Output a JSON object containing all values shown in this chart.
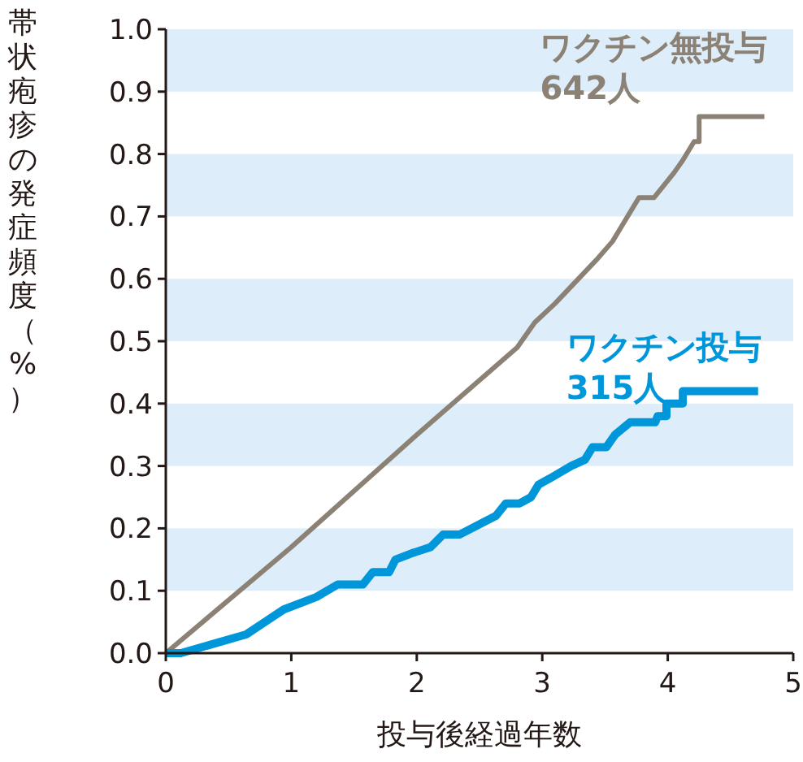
{
  "chart_data": {
    "type": "line",
    "xlabel": "投与後経過年数",
    "ylabel": "帯状疱疹の発症頻度（%）",
    "xlim": [
      0,
      5
    ],
    "xticks": [
      0,
      1,
      2,
      3,
      4,
      5
    ],
    "ylim": [
      0,
      1
    ],
    "yticks": [
      {
        "value": 0,
        "label": "0.0"
      },
      {
        "value": 0.1,
        "label": "0.1"
      },
      {
        "value": 0.2,
        "label": "0.2"
      },
      {
        "value": 0.3,
        "label": "0.3"
      },
      {
        "value": 0.4,
        "label": "0.4"
      },
      {
        "value": 0.5,
        "label": "0.5"
      },
      {
        "value": 0.6,
        "label": "0.6"
      },
      {
        "value": 0.7,
        "label": "0.7"
      },
      {
        "value": 0.8,
        "label": "0.8"
      },
      {
        "value": 0.9,
        "label": "0.9"
      },
      {
        "value": 1,
        "label": "1.0"
      }
    ],
    "bands": [
      {
        "axis": "y",
        "from": 0.1,
        "to": 0.2,
        "color": "#ddedf9"
      },
      {
        "axis": "y",
        "from": 0.3,
        "to": 0.4,
        "color": "#ddedf9"
      },
      {
        "axis": "y",
        "from": 0.5,
        "to": 0.6,
        "color": "#ddedf9"
      },
      {
        "axis": "y",
        "from": 0.7,
        "to": 0.8,
        "color": "#ddedf9"
      },
      {
        "axis": "y",
        "from": 0.9,
        "to": 1.0,
        "color": "#ddedf9"
      }
    ],
    "series": [
      {
        "name": "ワクチン無投与\n642人",
        "color": "#8c8175",
        "x": [
          0,
          1,
          2,
          2.8,
          2.94,
          3.1,
          3.43,
          3.56,
          3.77,
          3.89,
          4.05,
          4.12,
          4.21,
          4.25,
          4.25,
          4.77
        ],
        "values": [
          0,
          0.17,
          0.35,
          0.49,
          0.53,
          0.56,
          0.63,
          0.66,
          0.73,
          0.73,
          0.77,
          0.79,
          0.82,
          0.82,
          0.86,
          0.86
        ]
      },
      {
        "name": "ワクチン投与\n315人",
        "color": "#0096da",
        "x": [
          0,
          0.12,
          0.64,
          0.94,
          1.2,
          1.37,
          1.57,
          1.65,
          1.78,
          1.83,
          1.96,
          2.11,
          2.21,
          2.34,
          2.63,
          2.71,
          2.82,
          2.91,
          2.97,
          3.06,
          3.23,
          3.34,
          3.4,
          3.51,
          3.58,
          3.7,
          3.9,
          3.92,
          3.99,
          3.99,
          4.12,
          4.12,
          4.72
        ],
        "values": [
          0,
          0,
          0.03,
          0.07,
          0.09,
          0.11,
          0.11,
          0.13,
          0.13,
          0.15,
          0.16,
          0.17,
          0.19,
          0.19,
          0.22,
          0.24,
          0.24,
          0.25,
          0.27,
          0.28,
          0.3,
          0.31,
          0.33,
          0.33,
          0.35,
          0.37,
          0.37,
          0.38,
          0.38,
          0.4,
          0.4,
          0.42,
          0.42
        ]
      }
    ]
  }
}
